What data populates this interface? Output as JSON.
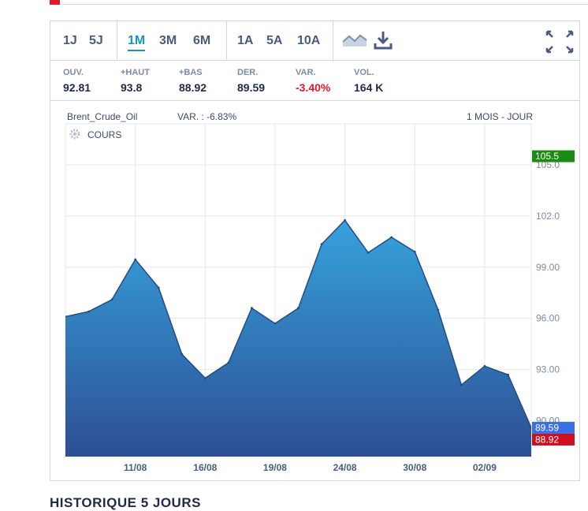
{
  "periods": [
    {
      "label": "1J",
      "active": false
    },
    {
      "label": "5J",
      "active": false
    },
    {
      "label": "1M",
      "active": true
    },
    {
      "label": "3M",
      "active": false
    },
    {
      "label": "6M",
      "active": false
    },
    {
      "label": "1A",
      "active": false
    },
    {
      "label": "5A",
      "active": false
    },
    {
      "label": "10A",
      "active": false
    }
  ],
  "icons": {
    "chart_type": "area-chart-icon",
    "download": "download-icon",
    "fullscreen": "expand-icon"
  },
  "stats": [
    {
      "label": "OUV.",
      "value": "92.81",
      "negative": false
    },
    {
      "label": "+HAUT",
      "value": "93.8",
      "negative": false
    },
    {
      "label": "+BAS",
      "value": "88.92",
      "negative": false
    },
    {
      "label": "DER.",
      "value": "89.59",
      "negative": false
    },
    {
      "label": "VAR.",
      "value": "-3.40%",
      "negative": true
    },
    {
      "label": "VOL.",
      "value": "164 K",
      "negative": false
    }
  ],
  "chart_header": {
    "instrument": "Brent_Crude_Oil",
    "variation": "VAR. : -6.83%",
    "range": "1 MOIS - JOUR",
    "legend": "COURS"
  },
  "chart_data": {
    "type": "area",
    "x": [
      "",
      "",
      "",
      "11/08",
      "",
      "",
      "16/08",
      "",
      "",
      "19/08",
      "",
      "",
      "24/08",
      "",
      "",
      "30/08",
      "",
      "",
      "02/09",
      "",
      ""
    ],
    "series": [
      {
        "name": "COURS",
        "values": [
          96.1,
          96.4,
          97.1,
          99.45,
          97.8,
          93.9,
          92.5,
          93.4,
          96.6,
          95.7,
          96.6,
          100.35,
          101.75,
          99.85,
          100.75,
          99.9,
          96.5,
          92.1,
          93.2,
          92.7,
          89.59
        ]
      }
    ],
    "x_tick_labels": [
      "11/08",
      "16/08",
      "19/08",
      "24/08",
      "30/08",
      "02/09"
    ],
    "y_tick_labels": [
      "90.00",
      "93.00",
      "96.00",
      "99.00",
      "102.0",
      "105.0"
    ],
    "ylim": [
      87.9,
      107.4
    ],
    "markers": [
      {
        "label": "105.5",
        "value": 105.5,
        "color": "#1a8c12"
      },
      {
        "label": "89.59",
        "value": 89.59,
        "color": "#3a6fe8"
      },
      {
        "label": "88.92",
        "value": 88.92,
        "color": "#cc1020"
      }
    ],
    "grid": true,
    "fill_top_color": "#36a2dc",
    "fill_bottom_color": "#2d4f93",
    "line_color": "#264a86"
  },
  "footer_heading": "HISTORIQUE 5 JOURS"
}
